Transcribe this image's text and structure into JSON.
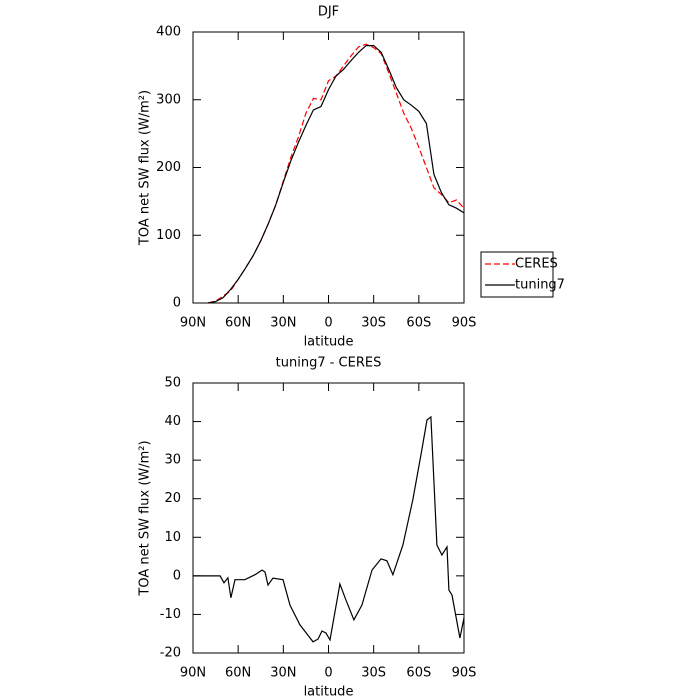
{
  "chart_data": [
    {
      "type": "line",
      "title": "DJF",
      "xlabel": "latitude",
      "ylabel": "TOA net SW flux (W/m²)",
      "x": [
        80,
        75,
        70,
        65,
        60,
        55,
        50,
        45,
        40,
        35,
        30,
        25,
        20,
        15,
        10,
        5,
        0,
        -5,
        -10,
        -15,
        -20,
        -25,
        -30,
        -35,
        -40,
        -45,
        -50,
        -55,
        -60,
        -65,
        -70,
        -75,
        -80,
        -85,
        -90
      ],
      "series": [
        {
          "name": "CERES",
          "color": "#ff0000",
          "dash": true,
          "values": [
            0,
            3,
            10,
            18,
            35,
            52,
            70,
            92,
            117,
            145,
            180,
            215,
            245,
            280,
            302,
            300,
            328,
            335,
            350,
            365,
            378,
            382,
            377,
            368,
            340,
            310,
            280,
            258,
            230,
            200,
            170,
            160,
            148,
            152,
            140
          ]
        },
        {
          "name": "tuning7",
          "color": "#000000",
          "dash": false,
          "values": [
            0,
            2,
            8,
            20,
            35,
            52,
            70,
            92,
            117,
            145,
            178,
            210,
            237,
            262,
            285,
            290,
            315,
            335,
            345,
            358,
            370,
            380,
            380,
            370,
            345,
            318,
            300,
            292,
            283,
            265,
            190,
            163,
            145,
            140,
            133
          ]
        }
      ],
      "xlim": [
        90,
        -90
      ],
      "xticks": [
        {
          "value": 90,
          "label": "90N"
        },
        {
          "value": 60,
          "label": "60N"
        },
        {
          "value": 30,
          "label": "30N"
        },
        0,
        {
          "value": -30,
          "label": "30S"
        },
        {
          "value": -60,
          "label": "60S"
        },
        {
          "value": -90,
          "label": "90S"
        }
      ],
      "ylim": [
        0,
        400
      ],
      "yticks": [
        0,
        100,
        200,
        300,
        400
      ],
      "legend": "right"
    },
    {
      "type": "line",
      "title": "tuning7 - CERES",
      "xlabel": "latitude",
      "ylabel": "TOA net SW flux (W/m²)",
      "color": "#000000",
      "x": [
        90,
        72,
        69.4,
        66.8,
        64.8,
        62.1,
        55.5,
        48.8,
        44.2,
        42.2,
        40.2,
        36.9,
        30.2,
        25.6,
        19,
        10.3,
        7,
        4.3,
        1.7,
        -1,
        -7.6,
        -11.6,
        -16.9,
        -22.2,
        -28.9,
        -34.9,
        -38.8,
        -42.8,
        -49.4,
        -56,
        -61.4,
        -65.4,
        -68,
        -72,
        -75.3,
        -78.7,
        -80,
        -82,
        -87.3,
        -90
      ],
      "values": [
        0,
        0,
        -1.8,
        -0.5,
        -5.7,
        -1,
        -1,
        0.3,
        1.5,
        1,
        -2.4,
        -0.6,
        -1,
        -7.6,
        -12.7,
        -17.1,
        -16.4,
        -14.3,
        -14.8,
        -16.6,
        -2.1,
        -6.3,
        -11.4,
        -7.6,
        1.5,
        4.4,
        3.9,
        0.3,
        8,
        19.7,
        31.3,
        40.4,
        41.2,
        8,
        5.4,
        7.5,
        -3.7,
        -5,
        -16.1,
        -10.9
      ],
      "xlim": [
        90,
        -90
      ],
      "xticks": [
        {
          "value": 90,
          "label": "90N"
        },
        {
          "value": 60,
          "label": "60N"
        },
        {
          "value": 30,
          "label": "30N"
        },
        0,
        {
          "value": -30,
          "label": "30S"
        },
        {
          "value": -60,
          "label": "60S"
        },
        {
          "value": -90,
          "label": "90S"
        }
      ],
      "ylim": [
        -20,
        50
      ],
      "yticks": [
        -20,
        -10,
        0,
        10,
        20,
        30,
        40,
        50
      ]
    }
  ]
}
